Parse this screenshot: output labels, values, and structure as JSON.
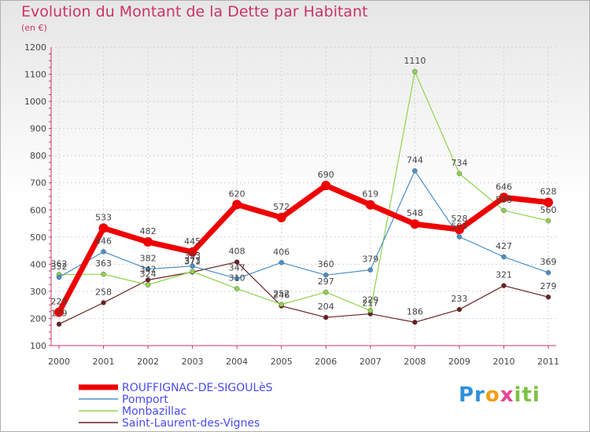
{
  "chart_data": {
    "type": "line",
    "title": "Evolution du Montant de la Dette par Habitant",
    "subtitle": "(en €)",
    "x": [
      "2000",
      "2001",
      "2002",
      "2003",
      "2004",
      "2005",
      "2006",
      "2007",
      "2008",
      "2009",
      "2010",
      "2011"
    ],
    "ylim": [
      100,
      1200
    ],
    "yticks": [
      100,
      200,
      300,
      400,
      500,
      600,
      700,
      800,
      900,
      1000,
      1100,
      1200
    ],
    "grid": true,
    "legend_position": "bottom-left",
    "series": [
      {
        "name": "ROUFFIGNAC-DE-SIGOULèS",
        "color": "#ee0000",
        "values": [
          223,
          533,
          482,
          445,
          620,
          572,
          690,
          619,
          548,
          528,
          646,
          628
        ]
      },
      {
        "name": "Pomport",
        "color": "#4a90c8",
        "values": [
          352,
          446,
          382,
          393,
          347,
          406,
          360,
          379,
          744,
          501,
          427,
          369
        ]
      },
      {
        "name": "Monbazillac",
        "color": "#8fd44a",
        "values": [
          362,
          363,
          324,
          373,
          310,
          252,
          297,
          229,
          1110,
          734,
          598,
          560
        ]
      },
      {
        "name": "Saint-Laurent-des-Vignes",
        "color": "#6b1f1f",
        "values": [
          179,
          258,
          342,
          371,
          408,
          246,
          204,
          217,
          186,
          233,
          321,
          279
        ]
      }
    ]
  },
  "logo": {
    "p1": "Pr",
    "p2": "o",
    "p3": "x",
    "p4": "iti"
  }
}
